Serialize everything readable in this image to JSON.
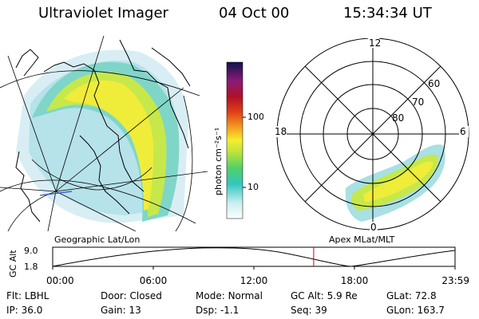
{
  "header": {
    "title": "Ultraviolet Imager",
    "date": "04 Oct 00",
    "time": "15:34:34 UT"
  },
  "colorbar": {
    "unit_label": "photon cm⁻²s⁻¹",
    "ticks": [
      "100",
      "10"
    ],
    "scale": "log"
  },
  "geo_panel": {
    "caption": "Geographic Lat/Lon"
  },
  "polar_panel": {
    "caption": "Apex MLat/MLT",
    "mlt_labels": {
      "top": "12",
      "left": "18",
      "right": "6",
      "bottom": "0"
    },
    "lat_labels": [
      "60",
      "70",
      "80"
    ]
  },
  "orbit_strip": {
    "ylabel": "GC Alt",
    "yticks": [
      "9.0",
      "1.8"
    ],
    "xticks": [
      "00:00",
      "06:00",
      "12:00",
      "18:00",
      "23:59"
    ],
    "current_time": "15:34",
    "marker_color": "#cc0000"
  },
  "footer": {
    "row1": [
      {
        "key": "Flt:",
        "value": "LBHL"
      },
      {
        "key": "Door:",
        "value": "Closed"
      },
      {
        "key": "Mode:",
        "value": "Normal"
      },
      {
        "key": "GC Alt:",
        "value": "5.9 Re"
      },
      {
        "key": "GLat:",
        "value": "72.8"
      }
    ],
    "row2": [
      {
        "key": "IP:",
        "value": "36.0"
      },
      {
        "key": "Gain:",
        "value": "13"
      },
      {
        "key": "Dsp:",
        "value": "-1.1"
      },
      {
        "key": "Seq:",
        "value": "39"
      },
      {
        "key": "GLon:",
        "value": "163.7"
      }
    ]
  }
}
